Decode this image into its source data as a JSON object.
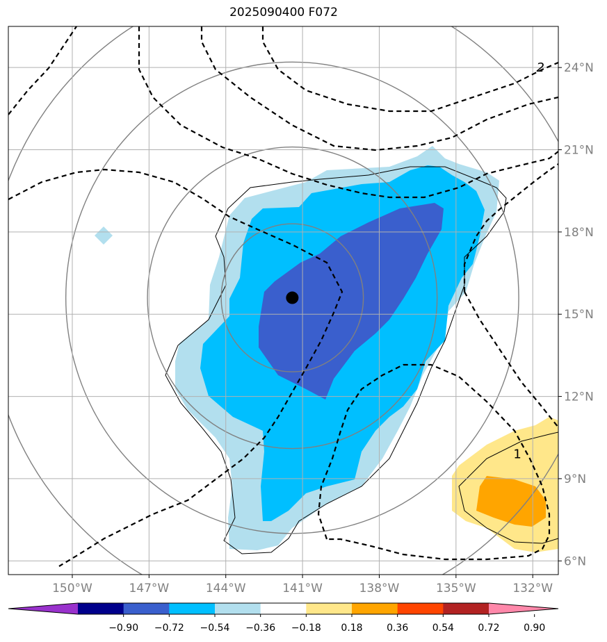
{
  "title": "2025090400 F072",
  "map": {
    "lon_range": [
      -152.5,
      -131.0
    ],
    "lat_range": [
      5.5,
      25.5
    ],
    "lon_ticks": [
      {
        "value": -150,
        "label": "150°W"
      },
      {
        "value": -147,
        "label": "147°W"
      },
      {
        "value": -144,
        "label": "144°W"
      },
      {
        "value": -141,
        "label": "141°W"
      },
      {
        "value": -138,
        "label": "138°W"
      },
      {
        "value": -135,
        "label": "135°W"
      },
      {
        "value": -132,
        "label": "132°W"
      }
    ],
    "lat_ticks": [
      {
        "value": 6,
        "label": "6°N"
      },
      {
        "value": 9,
        "label": "9°N"
      },
      {
        "value": 12,
        "label": "12°N"
      },
      {
        "value": 15,
        "label": "15°N"
      },
      {
        "value": 18,
        "label": "18°N"
      },
      {
        "value": 21,
        "label": "21°N"
      },
      {
        "value": 24,
        "label": "24°N"
      }
    ],
    "grid": true,
    "center_marker": {
      "lon": -141.4,
      "lat": 15.6
    },
    "range_rings_center": {
      "lon": -141.4,
      "lat": 15.6
    },
    "range_rings_lat_deg": [
      2.7,
      5.5,
      8.6,
      11.6
    ],
    "dashed_contour_labels": [
      {
        "text": "2",
        "lon": -131.7,
        "lat": 24.0
      },
      {
        "text": "1",
        "lon": -132.6,
        "lat": 9.9
      }
    ]
  },
  "colorbar": {
    "levels": [
      "−0.90",
      "−0.72",
      "−0.54",
      "−0.36",
      "−0.18",
      "0.18",
      "0.36",
      "0.54",
      "0.72",
      "0.90"
    ],
    "colors": [
      "#9932cc",
      "#00008b",
      "#3a5fcd",
      "#00bfff",
      "#b2dfee",
      "#ffffff",
      "#ffe78a",
      "#ffa500",
      "#ff4500",
      "#b22222",
      "#ff88aa"
    ]
  },
  "shading_colors": {
    "light_blue": "#b2dfee",
    "mid_blue": "#00bfff",
    "dark_blue": "#3a5fcd",
    "light_yellow": "#ffe78a",
    "orange": "#ffa500"
  }
}
